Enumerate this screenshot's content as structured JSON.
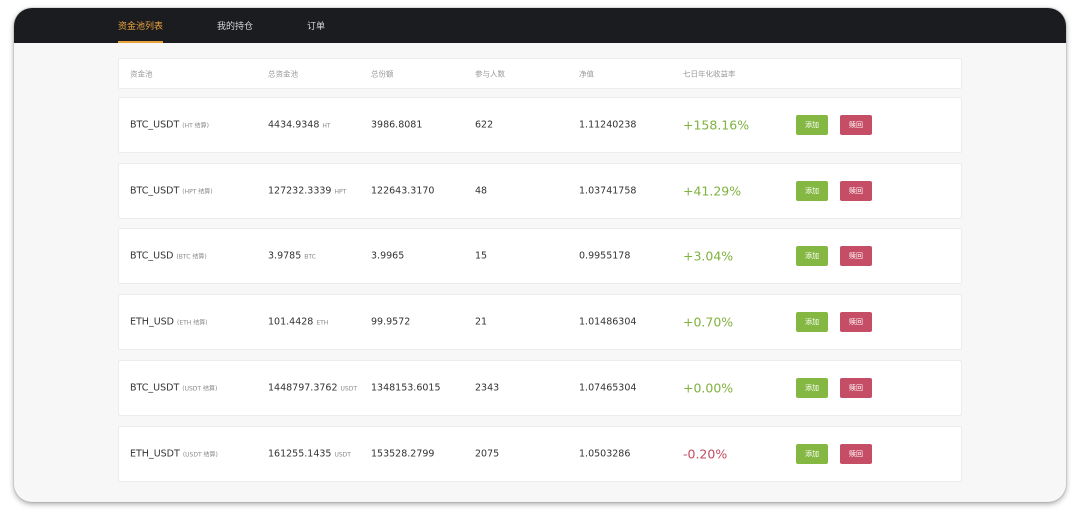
{
  "tabs": [
    {
      "label": "资金池列表",
      "active": true
    },
    {
      "label": "我的持仓",
      "active": false
    },
    {
      "label": "订单",
      "active": false
    }
  ],
  "columns": [
    "资金池",
    "总资金池",
    "总份额",
    "参与人数",
    "净值",
    "七日年化收益率"
  ],
  "rows": [
    {
      "name": "BTC_USDT",
      "settle": "(HT 结算)",
      "total": "4434.9348",
      "unit": "HT",
      "shares": "3986.8081",
      "participants": "622",
      "nav": "1.11240238",
      "rate": "+158.16%",
      "add": "添加",
      "redeem": "赎回"
    },
    {
      "name": "BTC_USDT",
      "settle": "(HPT 结算)",
      "total": "127232.3339",
      "unit": "HPT",
      "shares": "122643.3170",
      "participants": "48",
      "nav": "1.03741758",
      "rate": "+41.29%",
      "add": "添加",
      "redeem": "赎回"
    },
    {
      "name": "BTC_USD",
      "settle": "(BTC 结算)",
      "total": "3.9785",
      "unit": "BTC",
      "shares": "3.9965",
      "participants": "15",
      "nav": "0.9955178",
      "rate": "+3.04%",
      "add": "添加",
      "redeem": "赎回"
    },
    {
      "name": "ETH_USD",
      "settle": "(ETH 结算)",
      "total": "101.4428",
      "unit": "ETH",
      "shares": "99.9572",
      "participants": "21",
      "nav": "1.01486304",
      "rate": "+0.70%",
      "add": "添加",
      "redeem": "赎回"
    },
    {
      "name": "BTC_USDT",
      "settle": "(USDT 结算)",
      "total": "1448797.3762",
      "unit": "USDT",
      "shares": "1348153.6015",
      "participants": "2343",
      "nav": "1.07465304",
      "rate": "+0.00%",
      "add": "添加",
      "redeem": "赎回"
    },
    {
      "name": "ETH_USDT",
      "settle": "(USDT 结算)",
      "total": "161255.1435",
      "unit": "USDT",
      "shares": "153528.2799",
      "participants": "2075",
      "nav": "1.0503286",
      "rate": "-0.20%",
      "add": "添加",
      "redeem": "赎回"
    }
  ],
  "colors": {
    "accent": "#e9a23b",
    "positive": "#7fb23e",
    "negative": "#c24b5e",
    "add_button": "#84b843",
    "redeem_button": "#c64d66"
  }
}
